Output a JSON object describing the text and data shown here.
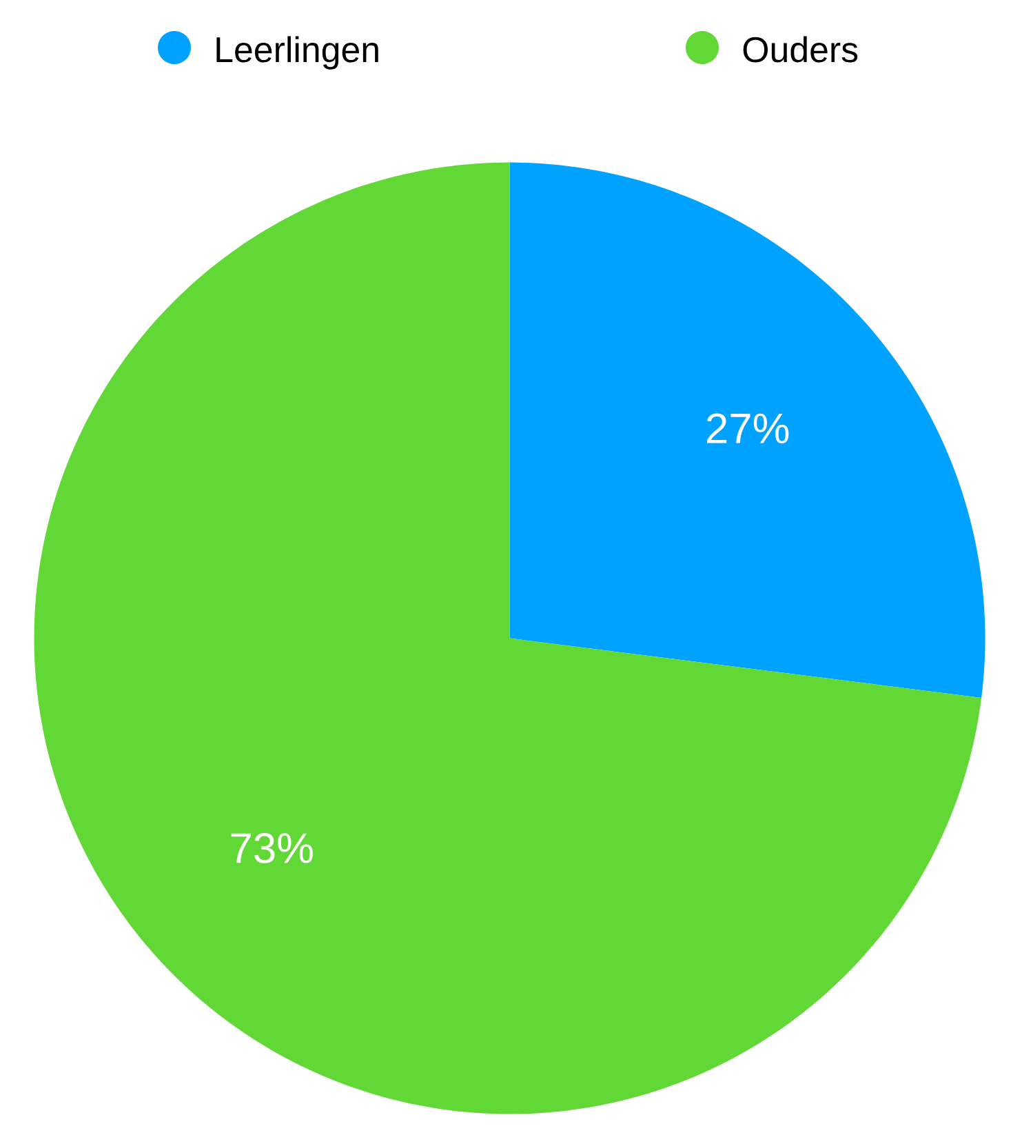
{
  "chart_data": {
    "type": "pie",
    "categories": [
      "Leerlingen",
      "Ouders"
    ],
    "values": [
      27,
      73
    ],
    "colors": [
      "#00a2ff",
      "#61d836"
    ],
    "value_labels": [
      "27%",
      "73%"
    ],
    "legend": "top"
  }
}
